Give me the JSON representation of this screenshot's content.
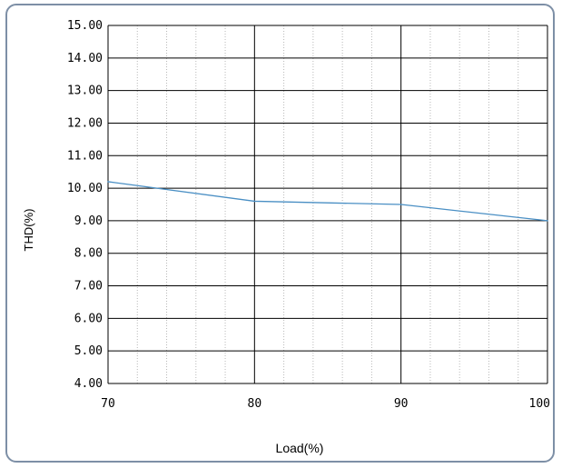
{
  "chart_data": {
    "type": "line",
    "title": "",
    "xlabel": "Load(%)",
    "ylabel": "THD(%)",
    "xlim": [
      70,
      100
    ],
    "ylim": [
      4,
      15
    ],
    "x_ticks": [
      "70",
      "80",
      "90",
      "100"
    ],
    "y_ticks": [
      "15.00",
      "14.00",
      "13.00",
      "12.00",
      "11.00",
      "10.00",
      "9.00",
      "8.00",
      "7.00",
      "6.00",
      "5.00",
      "4.00"
    ],
    "series": [
      {
        "x": [
          70,
          80,
          90,
          100
        ],
        "values": [
          10.2,
          9.6,
          9.5,
          9.0
        ],
        "color": "#4a8fc4"
      }
    ],
    "grid": true,
    "minor_grid_color": "#b8b8b8",
    "major_grid_color": "#000000"
  }
}
